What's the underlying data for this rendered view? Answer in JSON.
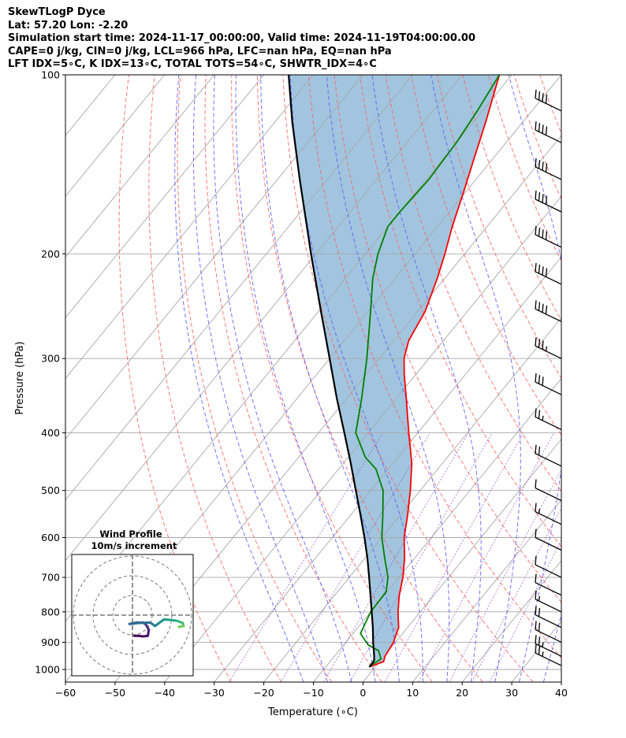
{
  "header": {
    "line1": "SkewTLogP Dyce",
    "line2": "Lat: 57.20   Lon: -2.20",
    "line3": "Simulation start time: 2024-11-17_00:00:00, Valid time: 2024-11-19T04:00:00.00",
    "line4": "CAPE=0 j/kg, CIN=0 j/kg, LCL=966 hPa, LFC=nan hPa, EQ=nan hPa",
    "line5": "LFT IDX=5∘C, K IDX=13∘C, TOTAL TOTS=54∘C, SHWTR_IDX=4∘C"
  },
  "chart_data": {
    "type": "line",
    "xlabel": "Temperature (∘C)",
    "ylabel": "Pressure (hPa)",
    "xlim": [
      -60,
      40
    ],
    "ylim": [
      1050,
      100
    ],
    "y_scale": "log",
    "grid": true,
    "x_ticks": [
      "−60",
      "−50",
      "−40",
      "−30",
      "−20",
      "−10",
      "0",
      "10",
      "20",
      "30",
      "40"
    ],
    "y_ticks": [
      {
        "p": 100,
        "label": "100"
      },
      {
        "p": 200,
        "label": "200"
      },
      {
        "p": 300,
        "label": "300"
      },
      {
        "p": 400,
        "label": "400"
      },
      {
        "p": 500,
        "label": "500"
      },
      {
        "p": 600,
        "label": "600"
      },
      {
        "p": 700,
        "label": "700"
      },
      {
        "p": 800,
        "label": "800"
      },
      {
        "p": 900,
        "label": "900"
      },
      {
        "p": 1000,
        "label": "1000"
      }
    ],
    "colors": {
      "temperature": "#ff0000",
      "dewpoint": "#008000",
      "parcel": "#000000",
      "cape_fill": "#a1c5df",
      "dry_adiabat": "#ff6060",
      "moist_adiabat": "#5a5aff",
      "isotherm": "#a8a8a8",
      "mixing_ratio": "#9955bb"
    },
    "series": [
      {
        "id": "temperature",
        "points": [
          {
            "p": 990,
            "t": -1.2
          },
          {
            "p": 970,
            "t": 0.8
          },
          {
            "p": 950,
            "t": 0.2
          },
          {
            "p": 900,
            "t": -0.4
          },
          {
            "p": 850,
            "t": -1.8
          },
          {
            "p": 800,
            "t": -4.5
          },
          {
            "p": 750,
            "t": -7.0
          },
          {
            "p": 700,
            "t": -9.2
          },
          {
            "p": 650,
            "t": -12.0
          },
          {
            "p": 600,
            "t": -15.5
          },
          {
            "p": 550,
            "t": -18.5
          },
          {
            "p": 500,
            "t": -22.0
          },
          {
            "p": 450,
            "t": -26.2
          },
          {
            "p": 400,
            "t": -31.8
          },
          {
            "p": 350,
            "t": -38.0
          },
          {
            "p": 320,
            "t": -42.2
          },
          {
            "p": 300,
            "t": -45.0
          },
          {
            "p": 280,
            "t": -47.0
          },
          {
            "p": 250,
            "t": -48.5
          },
          {
            "p": 220,
            "t": -51.5
          },
          {
            "p": 200,
            "t": -54.0
          },
          {
            "p": 180,
            "t": -57.0
          },
          {
            "p": 160,
            "t": -60.0
          },
          {
            "p": 140,
            "t": -63.5
          },
          {
            "p": 120,
            "t": -67.5
          },
          {
            "p": 100,
            "t": -72.5
          }
        ]
      },
      {
        "id": "dewpoint",
        "points": [
          {
            "p": 990,
            "t": -1.3
          },
          {
            "p": 960,
            "t": -0.2
          },
          {
            "p": 930,
            "t": -2.0
          },
          {
            "p": 910,
            "t": -5.0
          },
          {
            "p": 870,
            "t": -8.5
          },
          {
            "p": 800,
            "t": -10.0
          },
          {
            "p": 740,
            "t": -10.2
          },
          {
            "p": 700,
            "t": -12.2
          },
          {
            "p": 650,
            "t": -16.0
          },
          {
            "p": 600,
            "t": -20.0
          },
          {
            "p": 550,
            "t": -23.5
          },
          {
            "p": 500,
            "t": -27.5
          },
          {
            "p": 460,
            "t": -32.5
          },
          {
            "p": 440,
            "t": -36.5
          },
          {
            "p": 400,
            "t": -42.5
          },
          {
            "p": 350,
            "t": -47.0
          },
          {
            "p": 300,
            "t": -52.5
          },
          {
            "p": 250,
            "t": -59.5
          },
          {
            "p": 220,
            "t": -64.5
          },
          {
            "p": 200,
            "t": -67.5
          },
          {
            "p": 180,
            "t": -70.0
          },
          {
            "p": 170,
            "t": -70.0
          },
          {
            "p": 150,
            "t": -69.5
          },
          {
            "p": 130,
            "t": -70.0
          },
          {
            "p": 115,
            "t": -71.0
          },
          {
            "p": 100,
            "t": -72.5
          }
        ]
      },
      {
        "id": "parcel",
        "points": [
          {
            "p": 990,
            "t": -1.2
          },
          {
            "p": 966,
            "t": -1.3
          },
          {
            "p": 950,
            "t": -2.0
          },
          {
            "p": 900,
            "t": -4.5
          },
          {
            "p": 850,
            "t": -7.0
          },
          {
            "p": 800,
            "t": -9.8
          },
          {
            "p": 750,
            "t": -12.8
          },
          {
            "p": 700,
            "t": -16.0
          },
          {
            "p": 650,
            "t": -19.5
          },
          {
            "p": 600,
            "t": -23.5
          },
          {
            "p": 550,
            "t": -28.0
          },
          {
            "p": 500,
            "t": -33.0
          },
          {
            "p": 450,
            "t": -38.5
          },
          {
            "p": 400,
            "t": -44.8
          },
          {
            "p": 350,
            "t": -52.0
          },
          {
            "p": 300,
            "t": -60.0
          },
          {
            "p": 250,
            "t": -69.5
          },
          {
            "p": 200,
            "t": -81.0
          },
          {
            "p": 150,
            "t": -95.5
          },
          {
            "p": 120,
            "t": -106.5
          },
          {
            "p": 100,
            "t": -115.0
          }
        ]
      }
    ],
    "wind_barbs": [
      {
        "p": 115,
        "spd_kt": 40
      },
      {
        "p": 130,
        "spd_kt": 40
      },
      {
        "p": 150,
        "spd_kt": 40
      },
      {
        "p": 170,
        "spd_kt": 40
      },
      {
        "p": 195,
        "spd_kt": 40
      },
      {
        "p": 225,
        "spd_kt": 40
      },
      {
        "p": 260,
        "spd_kt": 40
      },
      {
        "p": 300,
        "spd_kt": 35
      },
      {
        "p": 345,
        "spd_kt": 30
      },
      {
        "p": 395,
        "spd_kt": 25
      },
      {
        "p": 455,
        "spd_kt": 20
      },
      {
        "p": 520,
        "spd_kt": 10
      },
      {
        "p": 570,
        "spd_kt": 15
      },
      {
        "p": 630,
        "spd_kt": 10
      },
      {
        "p": 700,
        "spd_kt": 10
      },
      {
        "p": 750,
        "spd_kt": 10
      },
      {
        "p": 800,
        "spd_kt": 15
      },
      {
        "p": 850,
        "spd_kt": 20
      },
      {
        "p": 900,
        "spd_kt": 20
      },
      {
        "p": 950,
        "spd_kt": 25
      },
      {
        "p": 985,
        "spd_kt": 25
      }
    ],
    "hodograph": {
      "title": "Wind Profile",
      "subtitle": "10m/s increment",
      "rings": [
        10,
        20,
        30
      ],
      "points": [
        {
          "u": 1.0,
          "v": -10.5,
          "c": "#440154"
        },
        {
          "u": 3.0,
          "v": -10.5,
          "c": "#440154"
        },
        {
          "u": 5.5,
          "v": -10.8,
          "c": "#471164"
        },
        {
          "u": 7.8,
          "v": -10.5,
          "c": "#48186a"
        },
        {
          "u": 8.3,
          "v": -7.5,
          "c": "#472d7b"
        },
        {
          "u": 7.0,
          "v": -5.0,
          "c": "#433e85"
        },
        {
          "u": 5.5,
          "v": -3.8,
          "c": "#3e4989"
        },
        {
          "u": 2.0,
          "v": -3.8,
          "c": "#38588c"
        },
        {
          "u": -1.5,
          "v": -4.5,
          "c": "#31688e"
        },
        {
          "u": 3.0,
          "v": -4.0,
          "c": "#2c728e"
        },
        {
          "u": 9.0,
          "v": -3.8,
          "c": "#2a788e"
        },
        {
          "u": 11.5,
          "v": -5.5,
          "c": "#25848e"
        },
        {
          "u": 13.5,
          "v": -4.0,
          "c": "#21918c"
        },
        {
          "u": 16.0,
          "v": -2.2,
          "c": "#1f9e89"
        },
        {
          "u": 20.0,
          "v": -2.5,
          "c": "#22a884"
        },
        {
          "u": 23.0,
          "v": -3.0,
          "c": "#35b779"
        },
        {
          "u": 25.5,
          "v": -4.0,
          "c": "#44bf70"
        },
        {
          "u": 26.0,
          "v": -5.5,
          "c": "#6ece58"
        },
        {
          "u": 23.5,
          "v": -6.0,
          "c": "#a0da39"
        }
      ]
    }
  }
}
